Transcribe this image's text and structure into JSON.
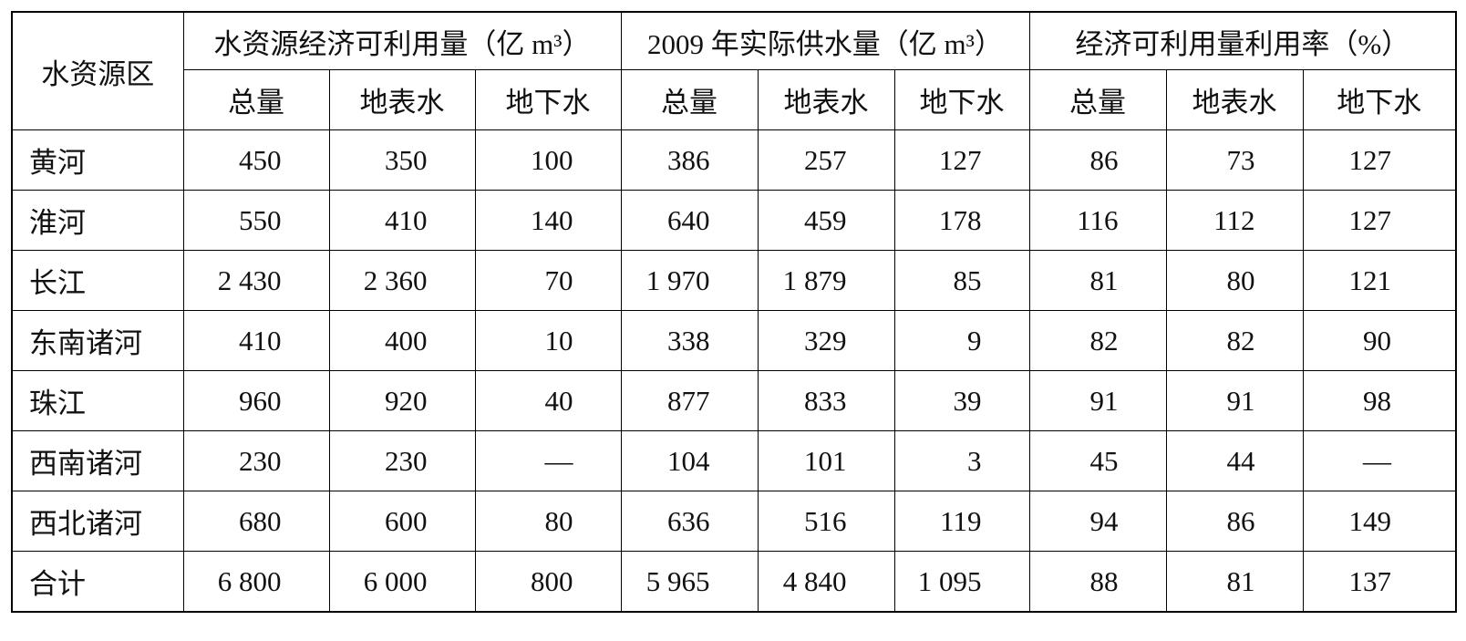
{
  "table": {
    "corner": "水资源区",
    "groups": [
      "水资源经济可利用量（亿 m³）",
      "2009 年实际供水量（亿 m³）",
      "经济可利用量利用率（%）"
    ],
    "sub_headers": [
      "总量",
      "地表水",
      "地下水",
      "总量",
      "地表水",
      "地下水",
      "总量",
      "地表水",
      "地下水"
    ],
    "rows": [
      [
        "黄河",
        "450",
        "350",
        "100",
        "386",
        "257",
        "127",
        "86",
        "73",
        "127"
      ],
      [
        "淮河",
        "550",
        "410",
        "140",
        "640",
        "459",
        "178",
        "116",
        "112",
        "127"
      ],
      [
        "长江",
        "2 430",
        "2 360",
        "70",
        "1 970",
        "1 879",
        "85",
        "81",
        "80",
        "121"
      ],
      [
        "东南诸河",
        "410",
        "400",
        "10",
        "338",
        "329",
        "9",
        "82",
        "82",
        "90"
      ],
      [
        "珠江",
        "960",
        "920",
        "40",
        "877",
        "833",
        "39",
        "91",
        "91",
        "98"
      ],
      [
        "西南诸河",
        "230",
        "230",
        "—",
        "104",
        "101",
        "3",
        "45",
        "44",
        "—"
      ],
      [
        "西北诸河",
        "680",
        "600",
        "80",
        "636",
        "516",
        "119",
        "94",
        "86",
        "149"
      ],
      [
        "合计",
        "6 800",
        "6 000",
        "800",
        "5 965",
        "4 840",
        "1 095",
        "88",
        "81",
        "137"
      ]
    ]
  }
}
